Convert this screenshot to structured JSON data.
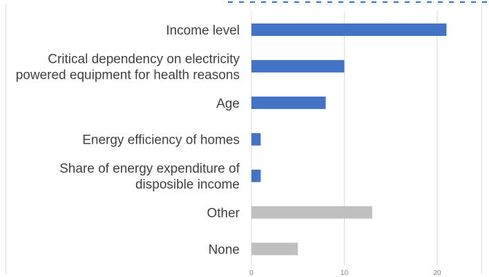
{
  "chart_data": {
    "type": "bar",
    "orientation": "horizontal",
    "title": "",
    "xlabel": "",
    "ylabel": "",
    "categories": [
      [
        "Income level"
      ],
      [
        "Critical dependency on electricity",
        "powered equipment for health reasons"
      ],
      [
        "Age"
      ],
      [
        "Energy efficiency of homes"
      ],
      [
        "Share of energy expenditure of",
        "disposible income"
      ],
      [
        "Other"
      ],
      [
        "None"
      ]
    ],
    "values": [
      21,
      10,
      8,
      1,
      1,
      13,
      5
    ],
    "bar_colors": [
      "#4472c4",
      "#4472c4",
      "#4472c4",
      "#4472c4",
      "#4472c4",
      "#bfbfbf",
      "#bfbfbf"
    ],
    "xlim": [
      0,
      22
    ],
    "x_ticks": [
      "0",
      "10",
      "20"
    ],
    "x_tick_values": [
      0,
      10,
      20
    ],
    "grid": true,
    "legend": "none"
  },
  "colors": {
    "highlight": "#4472c4",
    "other": "#bfbfbf",
    "grid": "#d9d9d9",
    "label": "#404040",
    "tick": "#7f7f7f"
  }
}
